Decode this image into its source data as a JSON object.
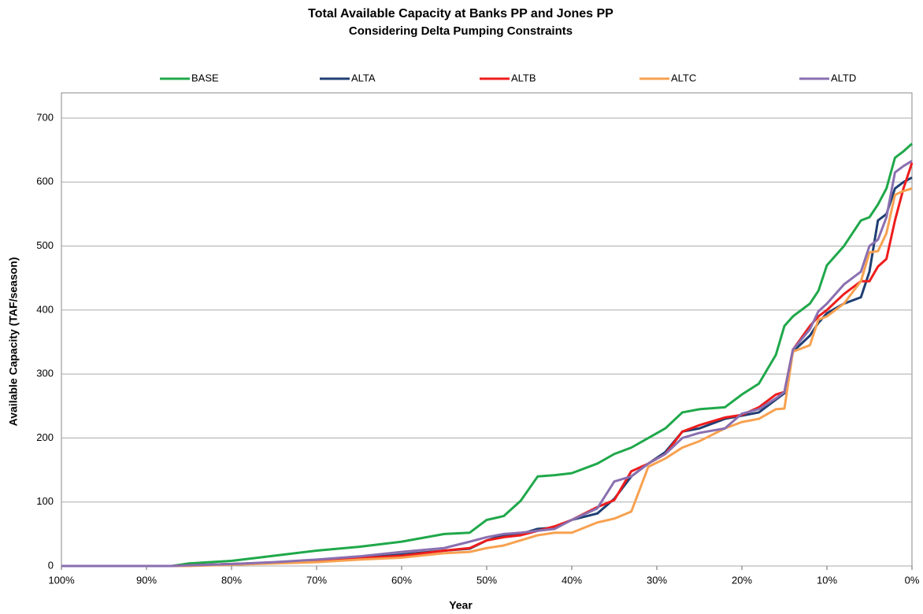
{
  "chart_data": {
    "type": "line",
    "title": "Total Available Capacity at Banks PP and Jones PP",
    "subtitle": "Considering Delta Pumping Constraints",
    "x_label": "Year",
    "y_label": "Available Capacity (TAF/season)",
    "x": [
      100,
      90,
      87,
      85,
      80,
      75,
      70,
      65,
      60,
      55,
      52,
      50,
      48,
      46,
      44,
      42,
      40,
      37,
      35,
      33,
      31,
      29,
      27,
      25,
      22,
      20,
      18,
      16,
      15,
      14,
      12,
      11,
      10,
      8,
      6,
      5,
      4,
      3,
      2,
      1,
      0
    ],
    "series": [
      {
        "name": "BASE",
        "color": "#1fa84a",
        "values": [
          0,
          0,
          0,
          4,
          8,
          16,
          24,
          30,
          38,
          50,
          52,
          72,
          78,
          102,
          140,
          142,
          145,
          160,
          175,
          185,
          200,
          215,
          240,
          245,
          248,
          268,
          285,
          330,
          375,
          390,
          410,
          430,
          470,
          500,
          540,
          545,
          565,
          590,
          638,
          648,
          660
        ]
      },
      {
        "name": "ALTA",
        "color": "#1f3f73",
        "values": [
          0,
          0,
          0,
          1,
          3,
          5,
          8,
          12,
          18,
          24,
          27,
          40,
          48,
          50,
          58,
          60,
          72,
          82,
          105,
          140,
          160,
          178,
          210,
          215,
          230,
          235,
          240,
          260,
          270,
          335,
          360,
          380,
          395,
          410,
          420,
          460,
          540,
          550,
          590,
          600,
          607
        ]
      },
      {
        "name": "ALTB",
        "color": "#ee1c1c",
        "values": [
          0,
          0,
          0,
          1,
          3,
          5,
          8,
          12,
          16,
          24,
          28,
          40,
          45,
          48,
          55,
          62,
          72,
          92,
          103,
          148,
          160,
          175,
          210,
          220,
          232,
          236,
          248,
          268,
          272,
          338,
          375,
          390,
          400,
          425,
          445,
          445,
          468,
          480,
          540,
          590,
          630
        ]
      },
      {
        "name": "ALTC",
        "color": "#f7a150",
        "values": [
          0,
          0,
          0,
          0,
          2,
          4,
          6,
          10,
          13,
          20,
          22,
          28,
          32,
          40,
          48,
          52,
          52,
          68,
          74,
          85,
          155,
          168,
          185,
          195,
          215,
          225,
          230,
          245,
          246,
          335,
          345,
          385,
          390,
          410,
          445,
          490,
          492,
          520,
          580,
          586,
          590
        ]
      },
      {
        "name": "ALTD",
        "color": "#8a6fb0",
        "values": [
          0,
          0,
          0,
          1,
          3,
          6,
          10,
          15,
          22,
          28,
          38,
          45,
          50,
          52,
          55,
          58,
          72,
          90,
          132,
          140,
          160,
          175,
          200,
          208,
          215,
          238,
          245,
          262,
          272,
          338,
          370,
          398,
          410,
          440,
          460,
          500,
          510,
          545,
          615,
          625,
          633
        ]
      }
    ],
    "xlim": [
      100,
      0
    ],
    "xticks": [
      {
        "value": 100,
        "label": "100%"
      },
      {
        "value": 90,
        "label": "90%"
      },
      {
        "value": 80,
        "label": "80%"
      },
      {
        "value": 70,
        "label": "70%"
      },
      {
        "value": 60,
        "label": "60%"
      },
      {
        "value": 50,
        "label": "50%"
      },
      {
        "value": 40,
        "label": "40%"
      },
      {
        "value": 30,
        "label": "30%"
      },
      {
        "value": 20,
        "label": "20%"
      },
      {
        "value": 10,
        "label": "10%"
      },
      {
        "value": 0,
        "label": "0%"
      }
    ],
    "ylim": [
      0,
      700
    ],
    "yticks": [
      0,
      100,
      200,
      300,
      400,
      500,
      600,
      700
    ],
    "grid": true,
    "legend": "top"
  }
}
